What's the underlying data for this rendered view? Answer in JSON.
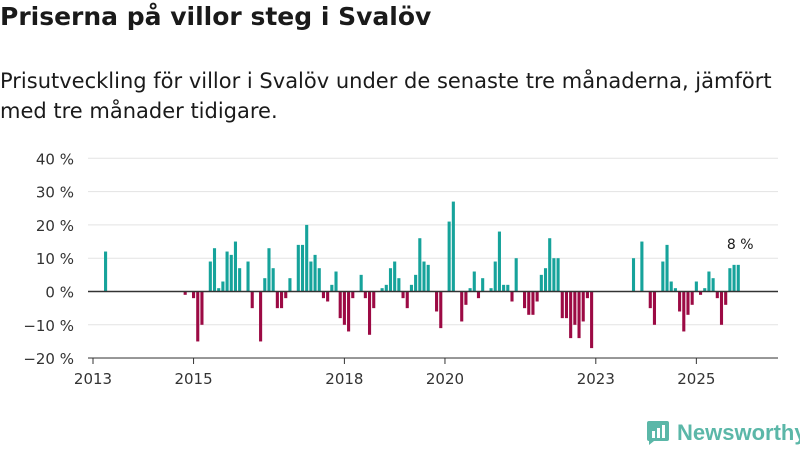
{
  "title": "Priserna på villor steg i Svalöv",
  "subtitle": "Prisutveckling för villor i Svalöv under de senaste tre månaderna, jämfört med tre månader tidigare.",
  "brand": "Newsworthy",
  "colors": {
    "positive": "#16a39b",
    "negative": "#9c0a44",
    "brand": "#5bb7a8"
  },
  "chart_data": {
    "type": "bar",
    "title": "Priserna på villor steg i Svalöv",
    "x_unit": "month",
    "x_start": "2013-01",
    "ylim": [
      -20,
      40
    ],
    "yticks": [
      -20,
      -10,
      0,
      10,
      20,
      30,
      40
    ],
    "ytick_labels": [
      "−20 %",
      "−10 %",
      "0 %",
      "10 %",
      "20 %",
      "30 %",
      "40 %"
    ],
    "xticks": [
      {
        "label": "2013",
        "month": 0
      },
      {
        "label": "2015",
        "month": 24
      },
      {
        "label": "2018",
        "month": 60
      },
      {
        "label": "2020",
        "month": 84
      },
      {
        "label": "2023",
        "month": 120
      },
      {
        "label": "2025",
        "month": 144
      }
    ],
    "months": [
      3,
      11,
      22,
      23,
      24,
      25,
      26,
      27,
      28,
      29,
      30,
      31,
      32,
      33,
      34,
      35,
      36,
      37,
      38,
      39,
      40,
      41,
      42,
      43,
      44,
      45,
      46,
      47,
      48,
      49,
      50,
      51,
      52,
      53,
      54,
      55,
      56,
      57,
      58,
      59,
      60,
      61,
      62,
      63,
      64,
      65,
      66,
      67,
      68,
      69,
      70,
      71,
      72,
      73,
      74,
      75,
      76,
      77,
      78,
      79,
      80,
      81,
      82,
      83,
      84,
      85,
      86,
      87,
      88,
      89,
      90,
      91,
      92,
      93,
      94,
      95,
      96,
      97,
      98,
      99,
      100,
      101,
      102,
      103,
      104,
      105,
      106,
      107,
      108,
      109,
      110,
      111,
      112,
      113,
      114,
      115,
      116,
      117,
      118,
      119,
      129,
      130,
      131,
      132,
      133,
      134,
      135,
      136,
      137,
      138,
      139,
      140,
      141,
      142,
      143,
      144,
      145,
      146,
      147,
      148,
      149,
      150,
      151,
      152,
      153,
      154
    ],
    "values": [
      12,
      0,
      -1,
      0,
      -2,
      -15,
      -10,
      0,
      9,
      13,
      1,
      3,
      12,
      11,
      15,
      7,
      0,
      9,
      -5,
      0,
      -15,
      4,
      13,
      7,
      -5,
      -5,
      -2,
      4,
      0,
      14,
      14,
      20,
      9,
      11,
      7,
      -2,
      -3,
      2,
      6,
      -8,
      -10,
      -12,
      -2,
      0,
      5,
      -2,
      -13,
      -5,
      0,
      1,
      2,
      7,
      9,
      4,
      -2,
      -5,
      2,
      5,
      16,
      9,
      8,
      0,
      -6,
      -11,
      0,
      21,
      27,
      0,
      -9,
      -4,
      1,
      6,
      -2,
      4,
      0,
      1,
      9,
      18,
      2,
      2,
      -3,
      10,
      0,
      -5,
      -7,
      -7,
      -3,
      5,
      7,
      16,
      10,
      10,
      -8,
      -8,
      -14,
      -10,
      -14,
      -9,
      -2,
      -17,
      10,
      0,
      15,
      0,
      -5,
      -10,
      0,
      9,
      14,
      3,
      1,
      -6,
      -12,
      -7,
      -4,
      3,
      -1,
      1,
      6,
      4,
      -2,
      -10,
      -4,
      7,
      8,
      8
    ],
    "annotation": {
      "text": "8 %",
      "month": 154,
      "value": 8
    }
  }
}
